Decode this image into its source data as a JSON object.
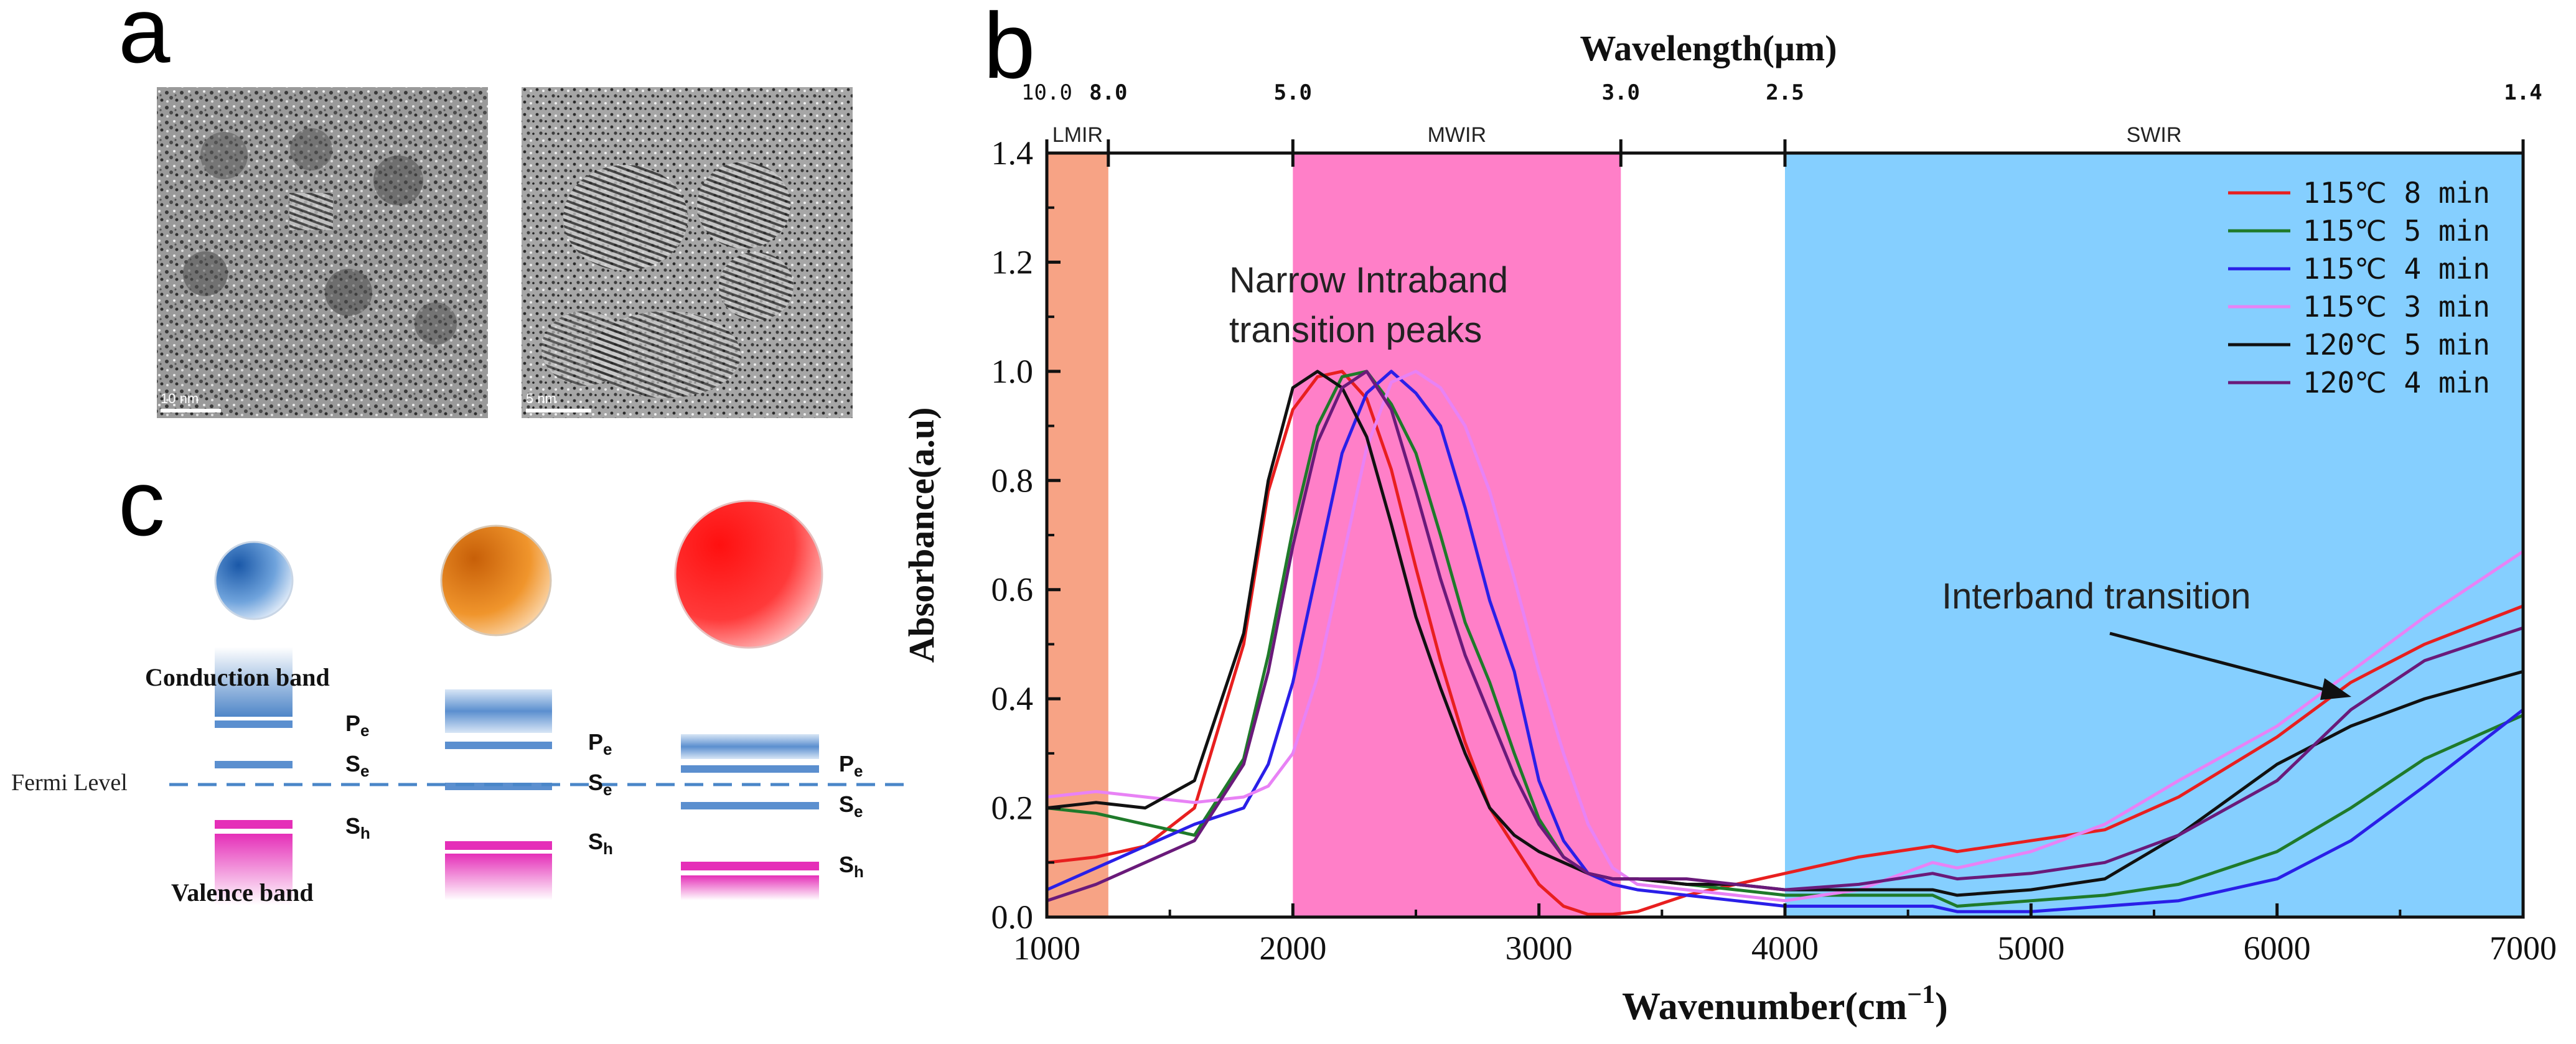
{
  "panels": {
    "a": {
      "label": "a",
      "tem_images": [
        {
          "scale_bar": "10 nm"
        },
        {
          "scale_bar": "5 nm"
        }
      ]
    },
    "b": {
      "label": "b"
    },
    "c": {
      "label": "c",
      "conduction_band": "Conduction band",
      "valence_band": "Valence band",
      "fermi_level": "Fermi Level",
      "level_labels": {
        "pe_main": "P",
        "pe_sub": "e",
        "se_main": "S",
        "se_sub": "e",
        "sh_main": "S",
        "sh_sub": "h"
      },
      "colors": {
        "small_dot": "#2a6db5",
        "medium_dot": "#e07a1c",
        "large_dot": "#ff2020",
        "conduction": "#5b8fcf",
        "valence": "#e83cc0",
        "fermi": "#4a86c8"
      }
    }
  },
  "chart_data": {
    "type": "line",
    "title": "",
    "xlabel": "Wavenumber(cm",
    "xlabel_sup": "−1",
    "xlabel_close": ")",
    "ylabel": "Absorbance(a.u)",
    "top_axis_label": "Wavelength(μm)",
    "xlim": [
      1000,
      7000
    ],
    "ylim": [
      0.0,
      1.4
    ],
    "x_ticks": [
      1000,
      2000,
      3000,
      4000,
      5000,
      6000,
      7000
    ],
    "y_ticks": [
      "0.0",
      "0.2",
      "0.4",
      "0.6",
      "0.8",
      "1.0",
      "1.2",
      "1.4"
    ],
    "top_ticks": [
      {
        "label": "10.0",
        "wavenumber": 1000
      },
      {
        "label": "8.0",
        "wavenumber": 1250
      },
      {
        "label": "5.0",
        "wavenumber": 2000
      },
      {
        "label": "3.0",
        "wavenumber": 3333
      },
      {
        "label": "2.5",
        "wavenumber": 4000
      },
      {
        "label": "1.4",
        "wavenumber": 7000
      }
    ],
    "regions": [
      {
        "name": "LMIR",
        "from": 1000,
        "to": 1250,
        "color": "#f7a385"
      },
      {
        "name": "MWIR",
        "from": 2000,
        "to": 3333,
        "color": "#ff7fc8"
      },
      {
        "name": "SWIR",
        "from": 4000,
        "to": 7000,
        "color": "#85cfff"
      }
    ],
    "annotations": {
      "intraband": [
        "Narrow Intraband",
        "transition peaks"
      ],
      "interband": "Interband transition"
    },
    "series": [
      {
        "name": "115℃ 8 min",
        "color": "#e81f1f",
        "x": [
          1000,
          1200,
          1400,
          1600,
          1800,
          1900,
          2000,
          2100,
          2200,
          2300,
          2400,
          2500,
          2600,
          2700,
          2800,
          2900,
          3000,
          3100,
          3200,
          3300,
          3400,
          3600,
          3800,
          4000,
          4300,
          4600,
          4700,
          5000,
          5300,
          5600,
          6000,
          6300,
          6600,
          7000
        ],
        "y": [
          0.1,
          0.11,
          0.13,
          0.2,
          0.5,
          0.78,
          0.93,
          0.99,
          1.0,
          0.95,
          0.82,
          0.64,
          0.47,
          0.32,
          0.2,
          0.13,
          0.06,
          0.02,
          0.005,
          0.005,
          0.01,
          0.04,
          0.06,
          0.08,
          0.11,
          0.13,
          0.12,
          0.14,
          0.16,
          0.22,
          0.33,
          0.43,
          0.5,
          0.57
        ]
      },
      {
        "name": "115℃ 5 min",
        "color": "#1f7a2a",
        "x": [
          1000,
          1200,
          1400,
          1600,
          1800,
          1900,
          2000,
          2100,
          2200,
          2300,
          2400,
          2500,
          2600,
          2700,
          2800,
          2900,
          3000,
          3100,
          3200,
          3300,
          3400,
          3600,
          3800,
          4000,
          4300,
          4600,
          4700,
          5000,
          5300,
          5600,
          6000,
          6300,
          6600,
          7000
        ],
        "y": [
          0.2,
          0.19,
          0.17,
          0.15,
          0.29,
          0.48,
          0.71,
          0.9,
          0.99,
          1.0,
          0.94,
          0.85,
          0.7,
          0.54,
          0.43,
          0.3,
          0.18,
          0.11,
          0.08,
          0.07,
          0.07,
          0.06,
          0.05,
          0.04,
          0.04,
          0.04,
          0.02,
          0.03,
          0.04,
          0.06,
          0.12,
          0.2,
          0.29,
          0.37
        ]
      },
      {
        "name": "115℃ 4 min",
        "color": "#2a1fe8",
        "x": [
          1000,
          1200,
          1400,
          1600,
          1800,
          1900,
          2000,
          2100,
          2200,
          2300,
          2400,
          2500,
          2600,
          2700,
          2800,
          2900,
          3000,
          3100,
          3200,
          3300,
          3400,
          3600,
          3800,
          4000,
          4300,
          4600,
          4700,
          5000,
          5300,
          5600,
          6000,
          6300,
          6600,
          7000
        ],
        "y": [
          0.05,
          0.09,
          0.13,
          0.17,
          0.2,
          0.28,
          0.43,
          0.64,
          0.85,
          0.96,
          1.0,
          0.96,
          0.9,
          0.75,
          0.58,
          0.45,
          0.25,
          0.14,
          0.08,
          0.06,
          0.05,
          0.04,
          0.03,
          0.02,
          0.02,
          0.02,
          0.01,
          0.01,
          0.02,
          0.03,
          0.07,
          0.14,
          0.24,
          0.38
        ]
      },
      {
        "name": "115℃ 3 min",
        "color": "#e882f5",
        "x": [
          1000,
          1200,
          1400,
          1600,
          1800,
          1900,
          2000,
          2100,
          2200,
          2300,
          2400,
          2500,
          2600,
          2700,
          2800,
          2900,
          3000,
          3100,
          3200,
          3300,
          3400,
          3600,
          3800,
          4000,
          4300,
          4600,
          4700,
          5000,
          5300,
          5600,
          6000,
          6300,
          6600,
          7000
        ],
        "y": [
          0.22,
          0.23,
          0.22,
          0.21,
          0.22,
          0.24,
          0.3,
          0.44,
          0.65,
          0.86,
          0.98,
          1.0,
          0.97,
          0.9,
          0.78,
          0.62,
          0.45,
          0.3,
          0.17,
          0.09,
          0.06,
          0.05,
          0.04,
          0.03,
          0.05,
          0.1,
          0.09,
          0.12,
          0.17,
          0.25,
          0.35,
          0.45,
          0.55,
          0.67
        ]
      },
      {
        "name": "120℃ 5 min",
        "color": "#111111",
        "x": [
          1000,
          1200,
          1400,
          1600,
          1800,
          1900,
          2000,
          2100,
          2200,
          2300,
          2400,
          2500,
          2600,
          2700,
          2800,
          2900,
          3000,
          3100,
          3200,
          3300,
          3400,
          3600,
          3800,
          4000,
          4300,
          4600,
          4700,
          5000,
          5300,
          5600,
          6000,
          6300,
          6600,
          7000
        ],
        "y": [
          0.2,
          0.21,
          0.2,
          0.25,
          0.52,
          0.8,
          0.97,
          1.0,
          0.97,
          0.88,
          0.72,
          0.55,
          0.42,
          0.3,
          0.2,
          0.15,
          0.12,
          0.1,
          0.08,
          0.07,
          0.07,
          0.06,
          0.06,
          0.05,
          0.05,
          0.05,
          0.04,
          0.05,
          0.07,
          0.15,
          0.28,
          0.35,
          0.4,
          0.45
        ]
      },
      {
        "name": "120℃ 4 min",
        "color": "#6a1a7a",
        "x": [
          1000,
          1200,
          1400,
          1600,
          1800,
          1900,
          2000,
          2100,
          2200,
          2300,
          2400,
          2500,
          2600,
          2700,
          2800,
          2900,
          3000,
          3100,
          3200,
          3300,
          3400,
          3600,
          3800,
          4000,
          4300,
          4600,
          4700,
          5000,
          5300,
          5600,
          6000,
          6300,
          6600,
          7000
        ],
        "y": [
          0.03,
          0.06,
          0.1,
          0.14,
          0.28,
          0.45,
          0.68,
          0.87,
          0.97,
          1.0,
          0.93,
          0.78,
          0.62,
          0.48,
          0.37,
          0.26,
          0.17,
          0.11,
          0.08,
          0.07,
          0.07,
          0.07,
          0.06,
          0.05,
          0.06,
          0.08,
          0.07,
          0.08,
          0.1,
          0.15,
          0.25,
          0.38,
          0.47,
          0.53
        ]
      }
    ],
    "legend_position": "top-right"
  }
}
